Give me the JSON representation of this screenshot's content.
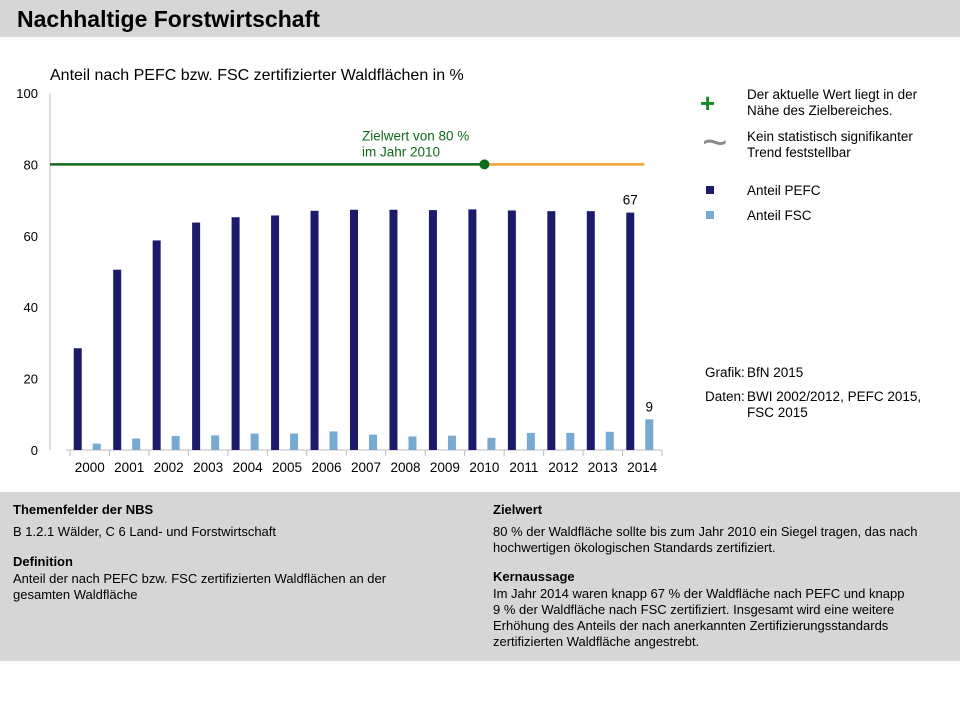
{
  "header": {
    "title": "Nachhaltige Forstwirtschaft"
  },
  "chart_data": {
    "type": "bar",
    "title": "Anteil nach PEFC bzw. FSC zertifizierter Waldflächen in %",
    "xlabel": "",
    "ylabel": "",
    "ylim": [
      0,
      100
    ],
    "yticks": [
      "0",
      "20",
      "40",
      "60",
      "80",
      "100"
    ],
    "categories": [
      "2000",
      "2001",
      "2002",
      "2003",
      "2004",
      "2005",
      "2006",
      "2007",
      "2008",
      "2009",
      "2010",
      "2011",
      "2012",
      "2013",
      "2014"
    ],
    "series": [
      {
        "name": "Anteil PEFC",
        "color": "#1c1a6b",
        "values": [
          28.5,
          50.5,
          58.7,
          63.7,
          65.2,
          65.7,
          67.0,
          67.3,
          67.3,
          67.2,
          67.4,
          67.1,
          66.9,
          66.9,
          66.5
        ]
      },
      {
        "name": "Anteil FSC",
        "color": "#76aad3",
        "values": [
          1.8,
          3.2,
          3.9,
          4.1,
          4.6,
          4.6,
          5.2,
          4.3,
          3.8,
          4.0,
          3.4,
          4.8,
          4.8,
          5.1,
          8.6
        ]
      }
    ],
    "data_labels": [
      {
        "series": "Anteil PEFC",
        "category": "2014",
        "text": "67"
      },
      {
        "series": "Anteil FSC",
        "category": "2014",
        "text": "9"
      }
    ],
    "target": {
      "value": 80,
      "year": "2010",
      "label_line1": "Zielwert von 80 %",
      "label_line2": "im Jahr 2010",
      "color_before": "#0f6a1a",
      "color_after": "#f4a02c"
    },
    "legend_position": "right",
    "grid": false
  },
  "legend": {
    "plus_symbol": "+",
    "plus_text_1": "Der aktuelle Wert liegt in der",
    "plus_text_2": "Nähe des Zielbereiches.",
    "tilde_symbol": "~",
    "tilde_text_1": "Kein statistisch signifikanter",
    "tilde_text_2": "Trend feststellbar",
    "pefc_label": "Anteil PEFC",
    "fsc_label": "Anteil FSC",
    "plus_color": "#128a22",
    "tilde_color": "#8a8a8a"
  },
  "source": {
    "grafik_label": "Grafik:",
    "grafik_value": "BfN 2015",
    "daten_label": "Daten:",
    "daten_value_1": "BWI 2002/2012, PEFC 2015,",
    "daten_value_2": "FSC 2015"
  },
  "panel": {
    "themen_head": "Themenfelder der NBS",
    "themen_text": "B 1.2.1 Wälder, C 6 Land- und Forstwirtschaft",
    "definition_head": "Definition",
    "definition_text_1": "Anteil der nach PEFC bzw. FSC zertifizierten Waldflächen an der",
    "definition_text_2": "gesamten Waldfläche",
    "zielwert_head": "Zielwert",
    "zielwert_text_1": "80 % der Waldfläche sollte bis zum Jahr 2010 ein Siegel tragen, das nach",
    "zielwert_text_2": "hochwertigen ökologischen Standards zertifiziert.",
    "kern_head": "Kernaussage",
    "kern_text_1": "Im Jahr 2014 waren knapp 67 % der Waldfläche nach PEFC und knapp",
    "kern_text_2": "9 % der Waldfläche nach FSC zertifiziert. Insgesamt wird eine weitere",
    "kern_text_3": "Erhöhung des Anteils der nach anerkannten Zertifizierungsstandards",
    "kern_text_4": "zertifizierten Waldfläche angestrebt."
  }
}
